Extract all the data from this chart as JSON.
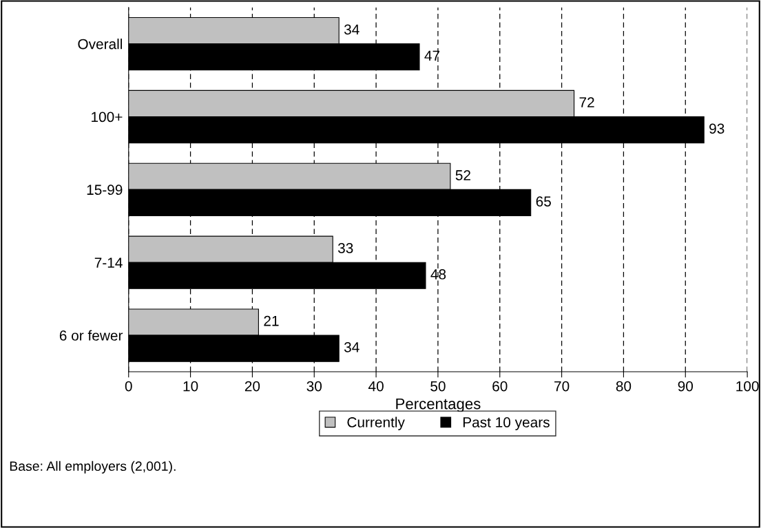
{
  "chart_data": {
    "type": "bar",
    "orientation": "horizontal",
    "xlabel": "Percentages",
    "categories": [
      "Overall",
      "100+",
      "15-99",
      "7-14",
      "6 or fewer"
    ],
    "series": [
      {
        "name": "Currently",
        "color": "#c0c0c0",
        "values": [
          34,
          72,
          52,
          33,
          21
        ]
      },
      {
        "name": "Past 10 years",
        "color": "#000000",
        "values": [
          47,
          93,
          65,
          48,
          34
        ]
      }
    ],
    "xlim": [
      0,
      100
    ],
    "xticks": [
      0,
      10,
      20,
      30,
      40,
      50,
      60,
      70,
      80,
      90,
      100
    ],
    "grid": "x",
    "legend": "bottom",
    "data_labels": true,
    "annotations": [
      "Base: All employers (2,001)."
    ]
  }
}
